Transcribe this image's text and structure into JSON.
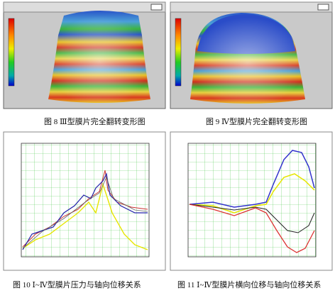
{
  "figures": [
    {
      "caption": "图 8  Ⅲ型膜片完全翻转变形图"
    },
    {
      "caption": "图 9  Ⅳ型膜片完全翻转变形图"
    },
    {
      "caption": "图 10  Ⅰ~Ⅳ型膜片压力与轴向位移关系"
    },
    {
      "caption": "图 11 Ⅰ~Ⅳ型膜片横向位移与轴向位移关系"
    }
  ]
}
